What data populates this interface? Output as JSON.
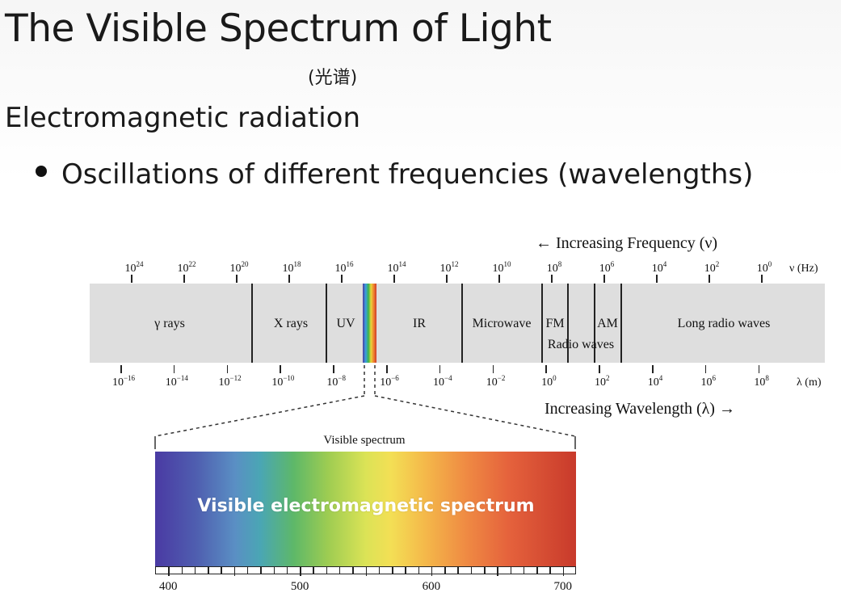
{
  "slide": {
    "title": "The Visible Spectrum of Light",
    "subtitle_cn": "(光谱)",
    "section_heading": "Electromagnetic radiation",
    "bullets": [
      "Oscillations of different frequencies (wavelengths)"
    ]
  },
  "diagram": {
    "frequency_caption": "← Increasing Frequency (ν)",
    "frequency_unit": "ν (Hz)",
    "frequency_ticks": [
      {
        "base": "10",
        "exp": "24"
      },
      {
        "base": "10",
        "exp": "22"
      },
      {
        "base": "10",
        "exp": "20"
      },
      {
        "base": "10",
        "exp": "18"
      },
      {
        "base": "10",
        "exp": "16"
      },
      {
        "base": "10",
        "exp": "14"
      },
      {
        "base": "10",
        "exp": "12"
      },
      {
        "base": "10",
        "exp": "10"
      },
      {
        "base": "10",
        "exp": "8"
      },
      {
        "base": "10",
        "exp": "6"
      },
      {
        "base": "10",
        "exp": "4"
      },
      {
        "base": "10",
        "exp": "2"
      },
      {
        "base": "10",
        "exp": "0"
      }
    ],
    "wavelength_caption": "Increasing Wavelength (λ) →",
    "wavelength_unit": "λ (m)",
    "wavelength_ticks": [
      {
        "base": "10",
        "exp": "−16"
      },
      {
        "base": "10",
        "exp": "−14"
      },
      {
        "base": "10",
        "exp": "−12"
      },
      {
        "base": "10",
        "exp": "−10"
      },
      {
        "base": "10",
        "exp": "−8"
      },
      {
        "base": "10",
        "exp": "−6"
      },
      {
        "base": "10",
        "exp": "−4"
      },
      {
        "base": "10",
        "exp": "−2"
      },
      {
        "base": "10",
        "exp": "0"
      },
      {
        "base": "10",
        "exp": "2"
      },
      {
        "base": "10",
        "exp": "4"
      },
      {
        "base": "10",
        "exp": "6"
      },
      {
        "base": "10",
        "exp": "8"
      }
    ],
    "regions": [
      "γ rays",
      "X rays",
      "UV",
      "IR",
      "Microwave",
      "FM",
      "AM",
      "Radio waves",
      "Long radio waves"
    ],
    "visible_spectrum_caption": "Visible spectrum",
    "visible_bar_label": "Visible electromagnetic spectrum",
    "nm_ticks": [
      "400",
      "500",
      "600",
      "700"
    ]
  }
}
